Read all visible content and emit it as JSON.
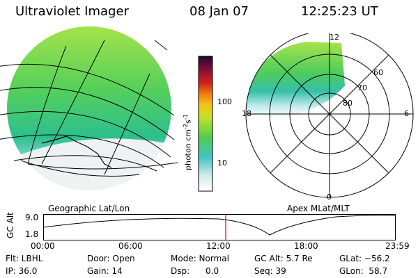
{
  "header": {
    "title": "Ultraviolet Imager",
    "date": "08 Jan 07",
    "time": "12:25:23 UT"
  },
  "colorbar": {
    "label": "photon cm",
    "sup1": "-2",
    "s": "s",
    "sup2": "-1",
    "ticks": [
      "100",
      "10"
    ]
  },
  "geo_map": {
    "label": "Geographic Lat/Lon"
  },
  "polar_map": {
    "label": "Apex MLat/MLT",
    "mlt_labels": {
      "top": "12",
      "left": "18",
      "right": "6",
      "bottom": "0"
    },
    "lat_labels": [
      "60",
      "70",
      "80"
    ]
  },
  "orbit": {
    "ylabel": "GC Alt",
    "y_ticks": [
      "9.0",
      "1.8"
    ],
    "x_ticks": [
      "00:00",
      "06:00",
      "12:00",
      "18:00",
      "23:59"
    ],
    "marker_color": "#e00000"
  },
  "footer": {
    "col1": [
      "Flt: LBHL",
      "IP: 36.0"
    ],
    "col2": [
      "Door: Open",
      "Gain: 14"
    ],
    "col3": [
      "Mode: Normal",
      "Dsp:      0.0"
    ],
    "col4": [
      "GC Alt: 5.7 Re",
      "Seq: 39"
    ],
    "col5": [
      "GLat: −56.2",
      "GLon:  58.7"
    ]
  }
}
